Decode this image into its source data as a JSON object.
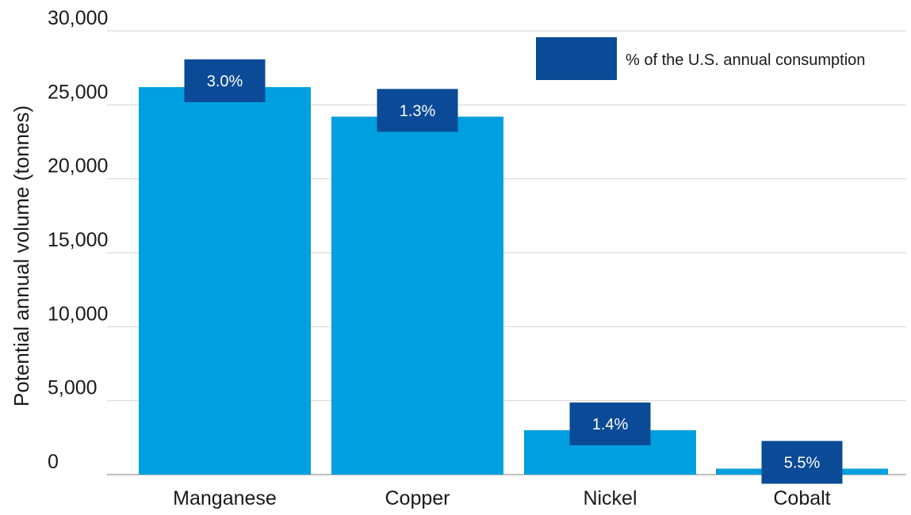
{
  "chart_data": {
    "type": "bar",
    "title": "",
    "xlabel": "",
    "ylabel": "Potential annual volume (tonnes)",
    "categories": [
      "Manganese",
      "Copper",
      "Nickel",
      "Cobalt"
    ],
    "values": [
      26200,
      24200,
      3000,
      400
    ],
    "annotations": [
      "3.0%",
      "1.3%",
      "1.4%",
      "5.5%"
    ],
    "ylim": [
      0,
      30000
    ],
    "yticks": [
      0,
      5000,
      10000,
      15000,
      20000,
      25000,
      30000
    ],
    "ytick_labels": [
      "0",
      "5,000",
      "10,000",
      "15,000",
      "20,000",
      "25,000",
      "30,000"
    ],
    "legend": {
      "label": "% of the U.S. annual consumption",
      "placement": "top-right"
    },
    "grid": true,
    "colors": {
      "bar": "#009fdf",
      "badge": "#0a4a97",
      "grid": "#d9d9d9",
      "text": "#1a1a1a"
    }
  }
}
